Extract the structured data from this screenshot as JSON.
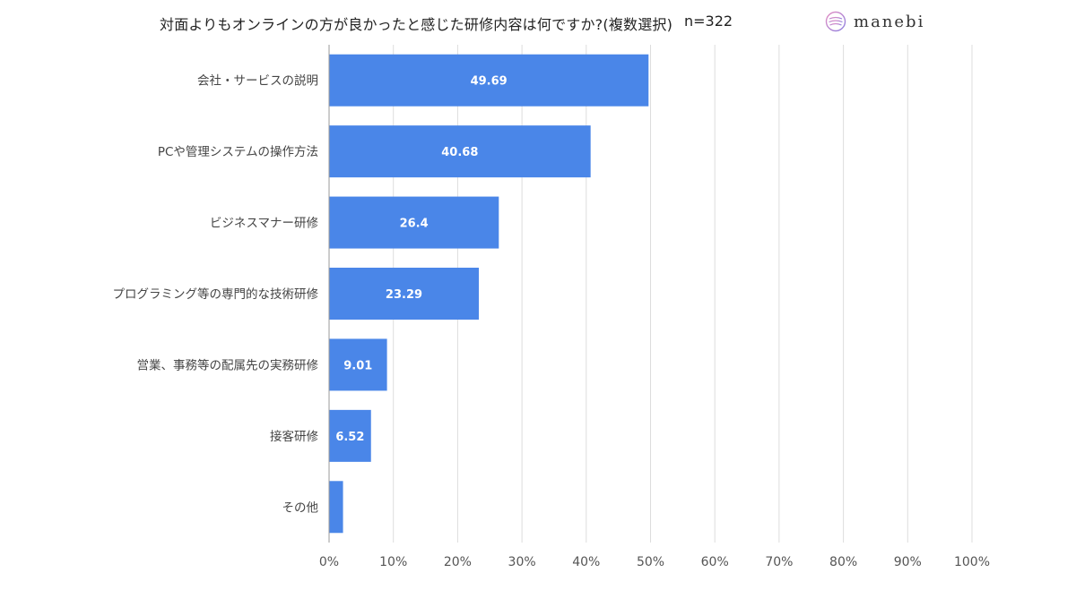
{
  "header": {
    "title": "対面よりもオンラインの方が良かったと感じた研修内容は何ですか?(複数選択)",
    "sample_size": "n=322",
    "brand": "manebi"
  },
  "colors": {
    "bar": "#4a86e8",
    "grid": "#dddddd",
    "axis": "#999999"
  },
  "chart_data": {
    "type": "bar",
    "orientation": "horizontal",
    "title": "対面よりもオンラインの方が良かったと感じた研修内容は何ですか?(複数選択)",
    "categories": [
      "会社・サービスの説明",
      "PCや管理システムの操作方法",
      "ビジネスマナー研修",
      "プログラミング等の専門的な技術研修",
      "営業、事務等の配属先の実務研修",
      "接客研修",
      "その他"
    ],
    "values": [
      49.69,
      40.68,
      26.4,
      23.29,
      9.01,
      6.52,
      2.17
    ],
    "value_labels": [
      "49.69",
      "40.68",
      "26.4",
      "23.29",
      "9.01",
      "6.52",
      ""
    ],
    "xlim": [
      0,
      100
    ],
    "xticks": [
      "0%",
      "10%",
      "20%",
      "30%",
      "40%",
      "50%",
      "60%",
      "70%",
      "80%",
      "90%",
      "100%"
    ],
    "grid": true,
    "legend": "none"
  }
}
